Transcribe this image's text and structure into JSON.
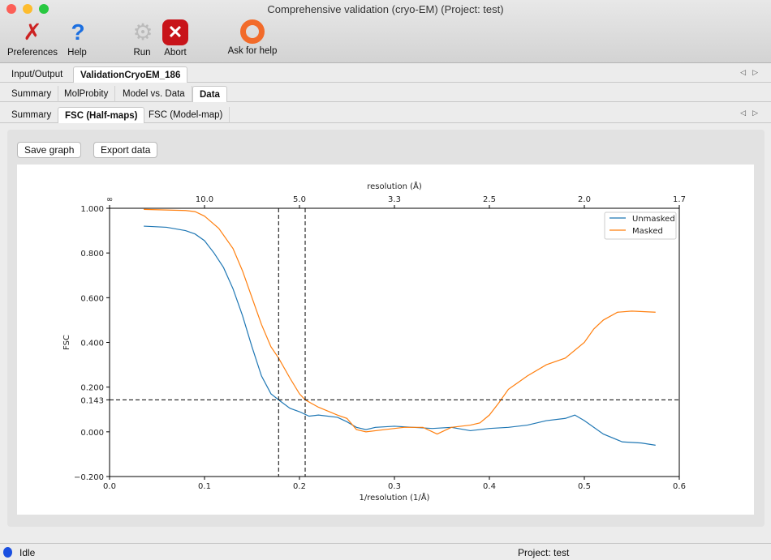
{
  "window": {
    "title": "Comprehensive validation (cryo-EM) (Project: test)"
  },
  "toolbar": [
    {
      "label": "Preferences",
      "icon": "preferences-icon"
    },
    {
      "label": "Help",
      "icon": "help-icon"
    },
    {
      "label": "Run",
      "icon": "run-gear-icon"
    },
    {
      "label": "Abort",
      "icon": "abort-icon"
    },
    {
      "label": "Ask for help",
      "icon": "lifebuoy-icon"
    }
  ],
  "tabs1": [
    "Input/Output",
    "ValidationCryoEM_186"
  ],
  "tabs2": [
    "Summary",
    "MolProbity",
    "Model vs. Data",
    "Data"
  ],
  "tabs3": [
    "Summary",
    "FSC (Half-maps)",
    "FSC (Model-map)"
  ],
  "buttons": {
    "save": "Save graph",
    "export": "Export data"
  },
  "status": {
    "state": "Idle",
    "project": "Project: test"
  },
  "colors": {
    "unmasked": "#1f77b4",
    "masked": "#ff7f0e",
    "status_dot": "#1a4fe0"
  },
  "chart_data": {
    "type": "line",
    "xlabel": "1/resolution (1/Å)",
    "ylabel": "FSC",
    "top_xlabel": "resolution (Å)",
    "xlim": [
      0,
      0.6
    ],
    "ylim": [
      -0.2,
      1.0
    ],
    "xticks": [
      0.0,
      0.1,
      0.2,
      0.3,
      0.4,
      0.5,
      0.6
    ],
    "xtick_labels": [
      "0.0",
      "0.1",
      "0.2",
      "0.3",
      "0.4",
      "0.5",
      "0.6"
    ],
    "top_xtick_labels": [
      "∞",
      "10.0",
      "5.0",
      "3.3",
      "2.5",
      "2.0",
      "1.7"
    ],
    "yticks": [
      -0.2,
      0.0,
      0.143,
      0.2,
      0.4,
      0.6,
      0.8,
      1.0
    ],
    "ytick_labels": [
      "−0.200",
      "0.000",
      "0.143",
      "0.200",
      "0.400",
      "0.600",
      "0.800",
      "1.000"
    ],
    "legend": "top-right",
    "grid": false,
    "hline": 0.143,
    "vlines": [
      0.178,
      0.206
    ],
    "series": [
      {
        "name": "Unmasked",
        "x": [
          0.036,
          0.06,
          0.08,
          0.09,
          0.1,
          0.11,
          0.12,
          0.13,
          0.14,
          0.15,
          0.16,
          0.17,
          0.178,
          0.19,
          0.2,
          0.21,
          0.22,
          0.24,
          0.25,
          0.26,
          0.27,
          0.28,
          0.3,
          0.32,
          0.34,
          0.36,
          0.38,
          0.4,
          0.42,
          0.44,
          0.46,
          0.48,
          0.49,
          0.5,
          0.52,
          0.54,
          0.56,
          0.575
        ],
        "y": [
          0.92,
          0.915,
          0.9,
          0.885,
          0.855,
          0.8,
          0.735,
          0.64,
          0.52,
          0.38,
          0.25,
          0.17,
          0.143,
          0.105,
          0.09,
          0.07,
          0.075,
          0.065,
          0.045,
          0.02,
          0.01,
          0.02,
          0.025,
          0.02,
          0.015,
          0.02,
          0.005,
          0.015,
          0.02,
          0.03,
          0.05,
          0.06,
          0.075,
          0.05,
          -0.01,
          -0.045,
          -0.05,
          -0.06
        ]
      },
      {
        "name": "Masked",
        "x": [
          0.036,
          0.08,
          0.09,
          0.1,
          0.115,
          0.13,
          0.14,
          0.15,
          0.16,
          0.17,
          0.178,
          0.19,
          0.2,
          0.206,
          0.22,
          0.24,
          0.25,
          0.26,
          0.27,
          0.29,
          0.31,
          0.33,
          0.345,
          0.36,
          0.38,
          0.39,
          0.4,
          0.41,
          0.42,
          0.44,
          0.46,
          0.48,
          0.5,
          0.51,
          0.52,
          0.535,
          0.55,
          0.575
        ],
        "y": [
          0.995,
          0.99,
          0.985,
          0.965,
          0.91,
          0.82,
          0.72,
          0.6,
          0.48,
          0.38,
          0.33,
          0.24,
          0.17,
          0.143,
          0.11,
          0.075,
          0.06,
          0.01,
          0.0,
          0.01,
          0.02,
          0.02,
          -0.01,
          0.02,
          0.03,
          0.04,
          0.075,
          0.13,
          0.19,
          0.25,
          0.3,
          0.33,
          0.4,
          0.46,
          0.5,
          0.535,
          0.54,
          0.535
        ]
      }
    ]
  }
}
